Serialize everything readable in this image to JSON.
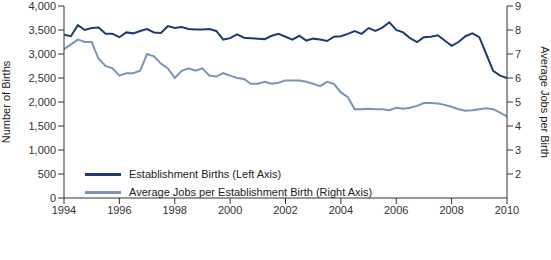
{
  "chart_data": {
    "type": "line",
    "x": [
      1994,
      1994.25,
      1994.5,
      1994.75,
      1995,
      1995.25,
      1995.5,
      1995.75,
      1996,
      1996.25,
      1996.5,
      1996.75,
      1997,
      1997.25,
      1997.5,
      1997.75,
      1998,
      1998.25,
      1998.5,
      1998.75,
      1999,
      1999.25,
      1999.5,
      1999.75,
      2000,
      2000.25,
      2000.5,
      2000.75,
      2001,
      2001.25,
      2001.5,
      2001.75,
      2002,
      2002.25,
      2002.5,
      2002.75,
      2003,
      2003.25,
      2003.5,
      2003.75,
      2004,
      2004.25,
      2004.5,
      2004.75,
      2005,
      2005.25,
      2005.5,
      2005.75,
      2006,
      2006.25,
      2006.5,
      2006.75,
      2007,
      2007.25,
      2007.5,
      2007.75,
      2008,
      2008.25,
      2008.5,
      2008.75,
      2009,
      2009.25,
      2009.5,
      2009.75,
      2010
    ],
    "series": [
      {
        "name": "Establishment Births (Left Axis)",
        "color": "#1f3a78",
        "values": [
          3400,
          3370,
          3600,
          3500,
          3540,
          3550,
          3420,
          3420,
          3350,
          3450,
          3430,
          3480,
          3520,
          3450,
          3440,
          3580,
          3540,
          3560,
          3520,
          3510,
          3510,
          3520,
          3480,
          3300,
          3330,
          3410,
          3340,
          3330,
          3320,
          3310,
          3380,
          3420,
          3360,
          3300,
          3380,
          3280,
          3320,
          3300,
          3270,
          3360,
          3370,
          3420,
          3480,
          3420,
          3540,
          3480,
          3550,
          3660,
          3500,
          3450,
          3330,
          3250,
          3350,
          3360,
          3390,
          3280,
          3170,
          3250,
          3370,
          3430,
          3350,
          3000,
          2650,
          2550,
          2500
        ]
      },
      {
        "name": "Average Jobs per Establishment Birth (Right Axis)",
        "color": "#7b93b9",
        "axis": "y2",
        "values": [
          7.2,
          7.4,
          7.6,
          7.5,
          7.5,
          6.8,
          6.5,
          6.4,
          6.1,
          6.2,
          6.2,
          6.3,
          7.0,
          6.9,
          6.6,
          6.4,
          6.0,
          6.3,
          6.4,
          6.3,
          6.4,
          6.1,
          6.06,
          6.2,
          6.1,
          6.0,
          5.96,
          5.76,
          5.76,
          5.84,
          5.76,
          5.8,
          5.9,
          5.9,
          5.9,
          5.84,
          5.76,
          5.66,
          5.84,
          5.76,
          5.4,
          5.2,
          4.7,
          4.7,
          4.72,
          4.7,
          4.7,
          4.66,
          4.76,
          4.72,
          4.76,
          4.84,
          4.96,
          4.96,
          4.94,
          4.88,
          4.8,
          4.7,
          4.64,
          4.66,
          4.7,
          4.74,
          4.7,
          4.56,
          4.4
        ]
      }
    ],
    "y_label": "Number of Births",
    "y2_label": "Average Jobs per Birth",
    "xlim": [
      1994,
      2010
    ],
    "xticks": [
      1994,
      1996,
      1998,
      2000,
      2002,
      2004,
      2006,
      2008,
      2010
    ],
    "ylim": [
      0,
      4000
    ],
    "yticks": [
      0,
      500,
      {
        "value": 1000,
        "label": "1,000"
      },
      {
        "value": 1500,
        "label": "1,500"
      },
      {
        "value": 2000,
        "label": "2,000"
      },
      {
        "value": 2500,
        "label": "2,500"
      },
      {
        "value": 3000,
        "label": "3,000"
      },
      {
        "value": 3500,
        "label": "3,500"
      },
      {
        "value": 4000,
        "label": "4,000"
      }
    ],
    "y2lim": [
      1,
      9
    ],
    "y2ticks": [
      2,
      3,
      4,
      5,
      6,
      7,
      8,
      9
    ],
    "legend": "lower left",
    "grid": false
  }
}
